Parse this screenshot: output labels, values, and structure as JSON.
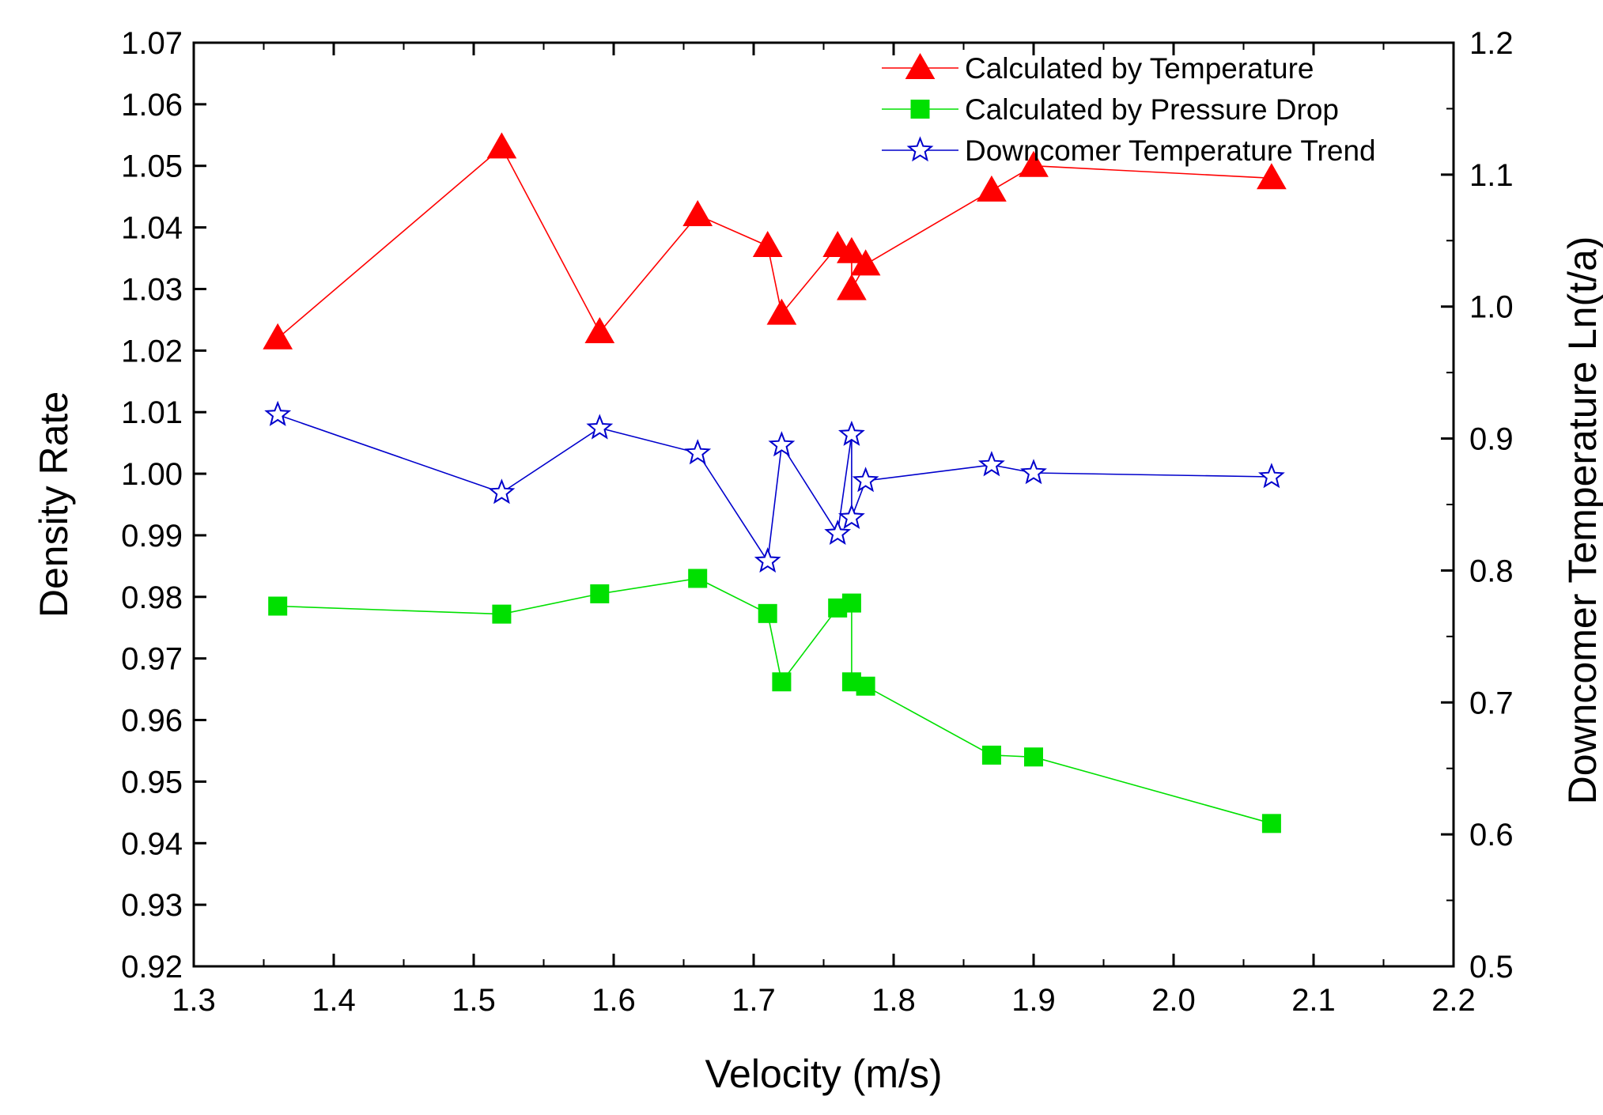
{
  "chart_data": {
    "type": "line",
    "title": "",
    "xlabel": "Velocity (m/s)",
    "ylabel": "Density Rate",
    "y2label": "Downcomer Temperature Ln(t/a)",
    "xlim": [
      1.3,
      2.2
    ],
    "ylim": [
      0.92,
      1.07
    ],
    "y2lim": [
      0.5,
      1.2
    ],
    "x_ticks": [
      "1.3",
      "1.4",
      "1.5",
      "1.6",
      "1.7",
      "1.8",
      "1.9",
      "2.0",
      "2.1",
      "2.2"
    ],
    "y_ticks": [
      "0.92",
      "0.93",
      "0.94",
      "0.95",
      "0.96",
      "0.97",
      "0.98",
      "0.99",
      "1.00",
      "1.01",
      "1.02",
      "1.03",
      "1.04",
      "1.05",
      "1.06",
      "1.07"
    ],
    "y2_ticks": [
      "0.5",
      "0.6",
      "0.7",
      "0.8",
      "0.9",
      "1.0",
      "1.1",
      "1.2"
    ],
    "legend_position": "top-right",
    "series": [
      {
        "name": "Calculated by Temperature",
        "axis": "left",
        "marker": "triangle",
        "color": "#ff0000",
        "x": [
          1.36,
          1.52,
          1.59,
          1.66,
          1.71,
          1.72,
          1.76,
          1.77,
          1.77,
          1.78,
          1.87,
          1.9,
          2.07
        ],
        "y": [
          1.022,
          1.053,
          1.023,
          1.042,
          1.037,
          1.026,
          1.037,
          1.036,
          1.03,
          1.034,
          1.046,
          1.05,
          1.048
        ]
      },
      {
        "name": "Calculated by Pressure Drop",
        "axis": "left",
        "marker": "square",
        "color": "#00e000",
        "x": [
          1.36,
          1.52,
          1.59,
          1.66,
          1.71,
          1.72,
          1.76,
          1.77,
          1.77,
          1.78,
          1.87,
          1.9,
          2.07
        ],
        "y": [
          0.9785,
          0.9772,
          0.9805,
          0.983,
          0.9773,
          0.9662,
          0.9782,
          0.979,
          0.9662,
          0.9655,
          0.9543,
          0.954,
          0.9432
        ]
      },
      {
        "name": "Downcomer Temperature Trend",
        "axis": "right",
        "marker": "star",
        "color": "#0000cc",
        "x": [
          1.36,
          1.52,
          1.59,
          1.66,
          1.71,
          1.72,
          1.76,
          1.77,
          1.77,
          1.78,
          1.87,
          1.9,
          2.07
        ],
        "y": [
          0.918,
          0.859,
          0.908,
          0.889,
          0.807,
          0.895,
          0.828,
          0.903,
          0.84,
          0.868,
          0.88,
          0.874,
          0.871
        ]
      }
    ]
  }
}
